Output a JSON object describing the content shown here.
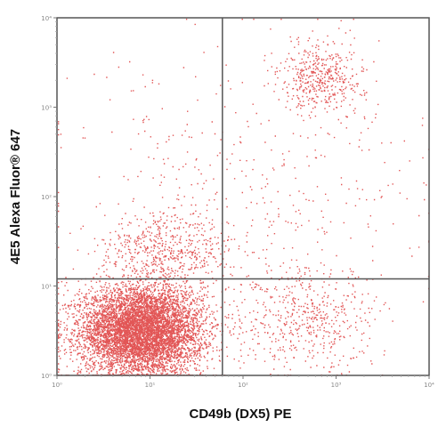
{
  "chart_data": {
    "type": "scatter",
    "title": "",
    "xlabel": "CD49b (DX5) PE",
    "ylabel": "4E5 Alexa Fluor® 647",
    "x_scale": "log",
    "y_scale": "log",
    "xlim": [
      1,
      10000
    ],
    "ylim": [
      1,
      10000
    ],
    "x_ticks": [
      "10⁰",
      "10¹",
      "10²",
      "10³",
      "10⁴"
    ],
    "y_ticks": [
      "10⁰",
      "10¹",
      "10²",
      "10³",
      "10⁴"
    ],
    "x_tick_values": [
      1,
      10,
      100,
      1000,
      10000
    ],
    "y_tick_values": [
      1,
      10,
      100,
      1000,
      10000
    ],
    "quadrant_gates": {
      "x": 60,
      "y": 12
    },
    "dot_color": "#d81e1e",
    "populations": [
      {
        "center_x": 8,
        "center_y": 3.2,
        "spread_log_x": 0.33,
        "spread_log_y": 0.25,
        "weight": 0.78
      },
      {
        "center_x": 700,
        "center_y": 2200,
        "spread_log_x": 0.22,
        "spread_log_y": 0.2,
        "weight": 0.05
      },
      {
        "center_x": 15,
        "center_y": 25,
        "spread_log_x": 0.35,
        "spread_log_y": 0.22,
        "weight": 0.06
      },
      {
        "center_x": 500,
        "center_y": 4,
        "spread_log_x": 0.4,
        "spread_log_y": 0.3,
        "weight": 0.06
      },
      {
        "center_x": 100,
        "center_y": 150,
        "spread_log_x": 1.0,
        "spread_log_y": 0.8,
        "weight": 0.05
      }
    ]
  }
}
